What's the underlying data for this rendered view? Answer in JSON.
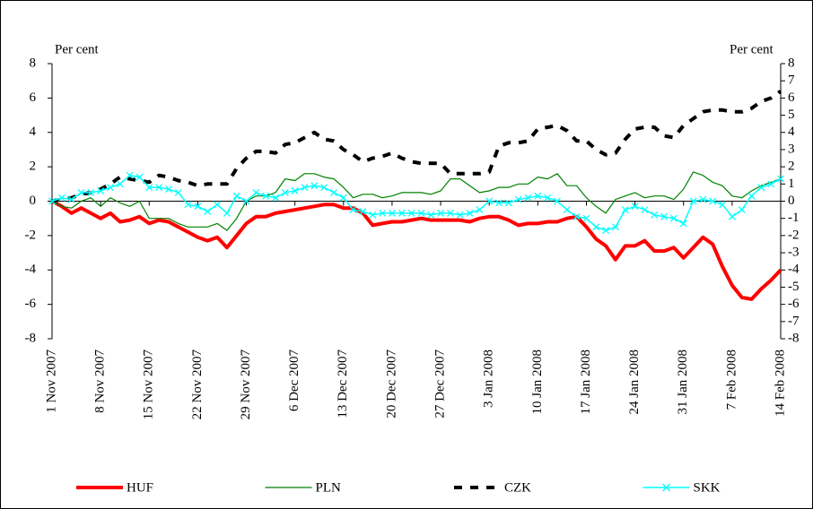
{
  "chart_data": {
    "type": "line",
    "y_label": "Per cent",
    "y2_label": "Per cent",
    "categories": [
      "1 Nov 2007",
      null,
      null,
      null,
      null,
      "8 Nov 2007",
      null,
      null,
      null,
      null,
      "15 Nov 2007",
      null,
      null,
      null,
      null,
      "22 Nov 2007",
      null,
      null,
      null,
      null,
      "29 Nov 2007",
      null,
      null,
      null,
      null,
      "6 Dec 2007",
      null,
      null,
      null,
      null,
      "13 Dec 2007",
      null,
      null,
      null,
      null,
      "20 Dec 2007",
      null,
      null,
      null,
      null,
      "27 Dec 2007",
      null,
      null,
      null,
      null,
      "3 Jan 2008",
      null,
      null,
      null,
      null,
      "10 Jan 2008",
      null,
      null,
      null,
      null,
      "17 Jan 2008",
      null,
      null,
      null,
      null,
      "24 Jan 2008",
      null,
      null,
      null,
      null,
      "31 Jan 2008",
      null,
      null,
      null,
      null,
      "7 Feb 2008",
      null,
      null,
      null,
      null,
      "14 Feb 2008"
    ],
    "series": [
      {
        "name": "HUF",
        "color": "#ff0000",
        "values": [
          0,
          -0.3,
          -0.7,
          -0.4,
          -0.7,
          -1.0,
          -0.7,
          -1.2,
          -1.1,
          -0.9,
          -1.3,
          -1.1,
          -1.2,
          -1.5,
          -1.8,
          -2.1,
          -2.3,
          -2.1,
          -2.7,
          -2.0,
          -1.3,
          -0.9,
          -0.9,
          -0.7,
          -0.6,
          -0.5,
          -0.4,
          -0.3,
          -0.2,
          -0.2,
          -0.4,
          -0.4,
          -0.7,
          -1.4,
          -1.3,
          -1.2,
          -1.2,
          -1.1,
          -1.0,
          -1.1,
          -1.1,
          -1.1,
          -1.1,
          -1.2,
          -1.0,
          -0.9,
          -0.9,
          -1.1,
          -1.4,
          -1.3,
          -1.3,
          -1.2,
          -1.2,
          -1.0,
          -0.9,
          -1.5,
          -2.2,
          -2.6,
          -3.4,
          -2.6,
          -2.6,
          -2.3,
          -2.9,
          -2.9,
          -2.7,
          -3.3,
          -2.7,
          -2.1,
          -2.5,
          -3.8,
          -4.9,
          -5.6,
          -5.7,
          -5.1,
          -4.6,
          -4.0
        ]
      },
      {
        "name": "PLN",
        "color": "#008000",
        "values": [
          0,
          -0.3,
          -0.4,
          0,
          0.2,
          -0.3,
          0.2,
          -0.1,
          -0.3,
          0,
          -1.0,
          -1.0,
          -1.0,
          -1.3,
          -1.5,
          -1.5,
          -1.5,
          -1.3,
          -1.7,
          -1.0,
          0,
          0.3,
          0.3,
          0.5,
          1.3,
          1.2,
          1.6,
          1.6,
          1.4,
          1.3,
          0.8,
          0.2,
          0.4,
          0.4,
          0.2,
          0.3,
          0.5,
          0.5,
          0.5,
          0.4,
          0.6,
          1.3,
          1.3,
          0.9,
          0.5,
          0.6,
          0.8,
          0.8,
          1.0,
          1.0,
          1.4,
          1.3,
          1.6,
          0.9,
          0.9,
          0.2,
          -0.3,
          -0.7,
          0.1,
          0.3,
          0.5,
          0.2,
          0.3,
          0.3,
          0.1,
          0.7,
          1.7,
          1.5,
          1.1,
          0.9,
          0.3,
          0.2,
          0.6,
          0.9,
          1.1,
          1.3
        ]
      },
      {
        "name": "CZK",
        "color": "#000000",
        "values": [
          0,
          0.1,
          0.2,
          0.4,
          0.5,
          0.7,
          1.0,
          1.4,
          1.3,
          1.2,
          1.1,
          1.5,
          1.4,
          1.2,
          1.1,
          0.9,
          1.0,
          1.0,
          1.0,
          1.9,
          2.5,
          2.9,
          2.9,
          2.8,
          3.3,
          3.4,
          3.7,
          4.0,
          3.6,
          3.5,
          3.0,
          2.7,
          2.3,
          2.5,
          2.6,
          2.8,
          2.5,
          2.3,
          2.2,
          2.2,
          2.2,
          1.6,
          1.6,
          1.6,
          1.6,
          1.7,
          3.2,
          3.4,
          3.4,
          3.5,
          4.2,
          4.3,
          4.4,
          4.1,
          3.5,
          3.5,
          3.0,
          2.7,
          2.8,
          3.6,
          4.2,
          4.3,
          4.3,
          3.8,
          3.7,
          4.4,
          4.8,
          5.2,
          5.3,
          5.3,
          5.2,
          5.2,
          5.4,
          5.8,
          6.0,
          6.4
        ]
      },
      {
        "name": "SKK",
        "color": "#00ffff",
        "values": [
          0,
          0.2,
          0.1,
          0.5,
          0.5,
          0.6,
          0.8,
          1.0,
          1.5,
          1.4,
          0.8,
          0.8,
          0.7,
          0.5,
          -0.2,
          -0.3,
          -0.6,
          -0.2,
          -0.7,
          0.3,
          0,
          0.5,
          0.3,
          0.2,
          0.5,
          0.6,
          0.8,
          0.9,
          0.8,
          0.5,
          0.2,
          -0.5,
          -0.6,
          -0.8,
          -0.7,
          -0.7,
          -0.7,
          -0.7,
          -0.7,
          -0.8,
          -0.7,
          -0.7,
          -0.8,
          -0.7,
          -0.5,
          0,
          -0.1,
          -0.1,
          0.1,
          0.2,
          0.3,
          0.2,
          0,
          -0.5,
          -0.9,
          -1.0,
          -1.5,
          -1.7,
          -1.5,
          -0.5,
          -0.3,
          -0.5,
          -0.8,
          -0.9,
          -1.0,
          -1.3,
          0,
          0.1,
          0,
          -0.2,
          -0.9,
          -0.5,
          0.3,
          0.8,
          1.0,
          1.3
        ]
      }
    ],
    "ylim": [
      -8,
      8
    ],
    "yticks": [
      -8,
      -6,
      -4,
      -2,
      0,
      2,
      4,
      6,
      8
    ],
    "y2lim": [
      -8,
      8
    ],
    "y2ticks": [
      -8,
      -7,
      -6,
      -5,
      -4,
      -3,
      -2,
      -1,
      0,
      1,
      2,
      3,
      4,
      5,
      6,
      7,
      8
    ],
    "grid": false,
    "legend": "bottom"
  }
}
